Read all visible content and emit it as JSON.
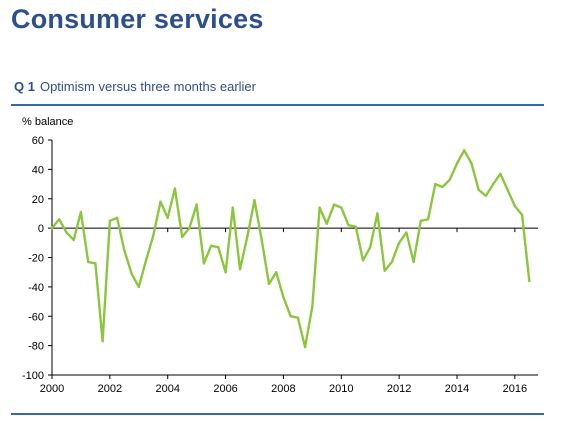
{
  "page_title": "Consumer services",
  "question": {
    "number": "Q 1",
    "text": "Optimism versus three months earlier"
  },
  "colors": {
    "line": "#8cc63f",
    "title": "#2e4f8e",
    "rule": "#3a63b0",
    "axis": "#000000"
  },
  "chart_data": {
    "type": "line",
    "title": "",
    "xlabel": "",
    "ylabel": "% balance",
    "xlim": [
      2000,
      2016.8
    ],
    "ylim": [
      -100,
      60
    ],
    "x_ticks": [
      2000,
      2002,
      2004,
      2006,
      2008,
      2010,
      2012,
      2014,
      2016
    ],
    "y_ticks": [
      60,
      40,
      20,
      0,
      -20,
      -40,
      -60,
      -80,
      -100
    ],
    "grid": false,
    "legend": "none",
    "series": [
      {
        "x": [
          2000.0,
          2000.25,
          2000.5,
          2000.75,
          2001.0,
          2001.25,
          2001.5,
          2001.75,
          2002.0,
          2002.25,
          2002.5,
          2002.75,
          2003.0,
          2003.25,
          2003.5,
          2003.75,
          2004.0,
          2004.25,
          2004.5,
          2004.75,
          2005.0,
          2005.25,
          2005.5,
          2005.75,
          2006.0,
          2006.25,
          2006.5,
          2006.75,
          2007.0,
          2007.25,
          2007.5,
          2007.75,
          2008.0,
          2008.25,
          2008.5,
          2008.75,
          2009.0,
          2009.25,
          2009.5,
          2009.75,
          2010.0,
          2010.25,
          2010.5,
          2010.75,
          2011.0,
          2011.25,
          2011.5,
          2011.75,
          2012.0,
          2012.25,
          2012.5,
          2012.75,
          2013.0,
          2013.25,
          2013.5,
          2013.75,
          2014.0,
          2014.25,
          2014.5,
          2014.75,
          2015.0,
          2015.25,
          2015.5,
          2015.75,
          2016.0,
          2016.25,
          2016.5
        ],
        "values": [
          0,
          6,
          -3,
          -8,
          11,
          -23,
          -24,
          -77,
          5,
          7,
          -15,
          -31,
          -40,
          -22,
          -5,
          18,
          7,
          27,
          -6,
          0,
          16,
          -24,
          -12,
          -13,
          -30,
          14,
          -28,
          -6,
          19,
          -8,
          -38,
          -30,
          -47,
          -60,
          -61,
          -81,
          -53,
          14,
          3,
          16,
          14,
          2,
          1,
          -22,
          -13,
          10,
          -29,
          -23,
          -10,
          -3,
          -23,
          5,
          6,
          30,
          28,
          33,
          44,
          53,
          44,
          26,
          22,
          30,
          37,
          26,
          15,
          9,
          -36
        ]
      }
    ]
  }
}
